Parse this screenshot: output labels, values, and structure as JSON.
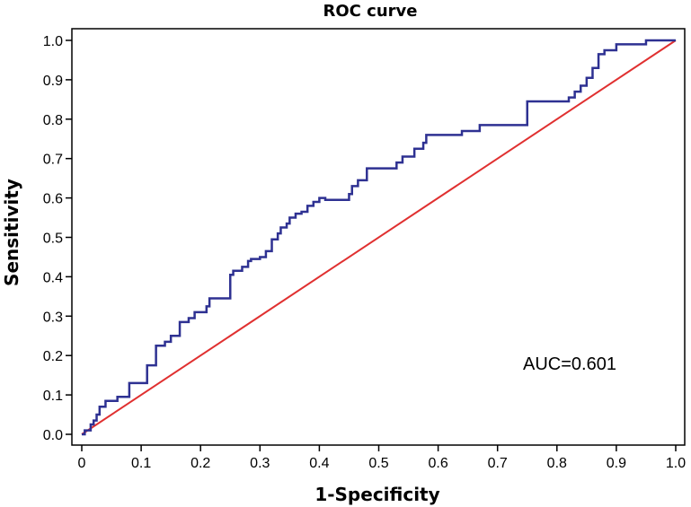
{
  "chart_data": {
    "type": "line",
    "title": "ROC curve",
    "xlabel": "1-Specificity",
    "ylabel": "Sensitivity",
    "xlim": [
      0.0,
      1.0
    ],
    "ylim": [
      0.0,
      1.0
    ],
    "xticks": [
      0.0,
      0.1,
      0.2,
      0.3,
      0.4,
      0.5,
      0.6,
      0.7,
      0.8,
      0.9,
      1.0
    ],
    "yticks": [
      0.0,
      0.1,
      0.2,
      0.3,
      0.4,
      0.5,
      0.6,
      0.7,
      0.8,
      0.9,
      1.0
    ],
    "xtick_labels": [
      "0",
      "0.1",
      "0.2",
      "0.3",
      "0.4",
      "0.5",
      "0.6",
      "0.7",
      "0.8",
      "0.9",
      "1.0"
    ],
    "ytick_labels": [
      "0.0",
      "0.1",
      "0.2",
      "0.3",
      "0.4",
      "0.5",
      "0.6",
      "0.7",
      "0.8",
      "0.9",
      "1.0"
    ],
    "grid": false,
    "legend": null,
    "annotation": "AUC=0.601",
    "colors": {
      "roc": "#2e3192",
      "reference": "#e03030",
      "axes": "#000000"
    },
    "series": [
      {
        "role": "roc",
        "x": [
          0,
          0.005,
          0.005,
          0.015,
          0.015,
          0.02,
          0.02,
          0.025,
          0.025,
          0.03,
          0.03,
          0.04,
          0.04,
          0.06,
          0.06,
          0.08,
          0.08,
          0.11,
          0.11,
          0.125,
          0.125,
          0.14,
          0.14,
          0.15,
          0.15,
          0.165,
          0.165,
          0.18,
          0.18,
          0.19,
          0.19,
          0.21,
          0.21,
          0.215,
          0.215,
          0.25,
          0.25,
          0.255,
          0.255,
          0.27,
          0.27,
          0.28,
          0.28,
          0.285,
          0.285,
          0.3,
          0.3,
          0.31,
          0.31,
          0.32,
          0.32,
          0.33,
          0.33,
          0.335,
          0.335,
          0.345,
          0.345,
          0.35,
          0.35,
          0.36,
          0.36,
          0.37,
          0.37,
          0.38,
          0.38,
          0.39,
          0.39,
          0.4,
          0.4,
          0.41,
          0.41,
          0.45,
          0.45,
          0.455,
          0.455,
          0.465,
          0.465,
          0.48,
          0.48,
          0.49,
          0.49,
          0.53,
          0.53,
          0.54,
          0.54,
          0.56,
          0.56,
          0.575,
          0.575,
          0.58,
          0.58,
          0.59,
          0.59,
          0.64,
          0.64,
          0.67,
          0.67,
          0.75,
          0.75,
          0.82,
          0.82,
          0.83,
          0.83,
          0.84,
          0.84,
          0.85,
          0.85,
          0.86,
          0.86,
          0.87,
          0.87,
          0.88,
          0.88,
          0.9,
          0.9,
          0.95,
          0.95,
          1.0
        ],
        "y": [
          0,
          0,
          0.01,
          0.01,
          0.025,
          0.025,
          0.035,
          0.035,
          0.05,
          0.05,
          0.07,
          0.07,
          0.085,
          0.085,
          0.095,
          0.095,
          0.13,
          0.13,
          0.175,
          0.175,
          0.225,
          0.225,
          0.235,
          0.235,
          0.25,
          0.25,
          0.285,
          0.285,
          0.295,
          0.295,
          0.31,
          0.31,
          0.325,
          0.325,
          0.345,
          0.345,
          0.405,
          0.405,
          0.415,
          0.415,
          0.425,
          0.425,
          0.44,
          0.44,
          0.445,
          0.445,
          0.45,
          0.45,
          0.465,
          0.465,
          0.495,
          0.495,
          0.51,
          0.51,
          0.525,
          0.525,
          0.535,
          0.535,
          0.55,
          0.55,
          0.56,
          0.56,
          0.565,
          0.565,
          0.58,
          0.58,
          0.59,
          0.59,
          0.6,
          0.6,
          0.595,
          0.595,
          0.61,
          0.61,
          0.63,
          0.63,
          0.645,
          0.645,
          0.675,
          0.675,
          0.675,
          0.675,
          0.69,
          0.69,
          0.705,
          0.705,
          0.725,
          0.725,
          0.74,
          0.74,
          0.76,
          0.76,
          0.76,
          0.76,
          0.77,
          0.77,
          0.785,
          0.785,
          0.845,
          0.845,
          0.855,
          0.855,
          0.87,
          0.87,
          0.885,
          0.885,
          0.905,
          0.905,
          0.93,
          0.93,
          0.965,
          0.965,
          0.975,
          0.975,
          0.99,
          0.99,
          1.0,
          1.0
        ]
      },
      {
        "role": "reference",
        "x": [
          0,
          1
        ],
        "y": [
          0,
          1
        ]
      }
    ]
  }
}
